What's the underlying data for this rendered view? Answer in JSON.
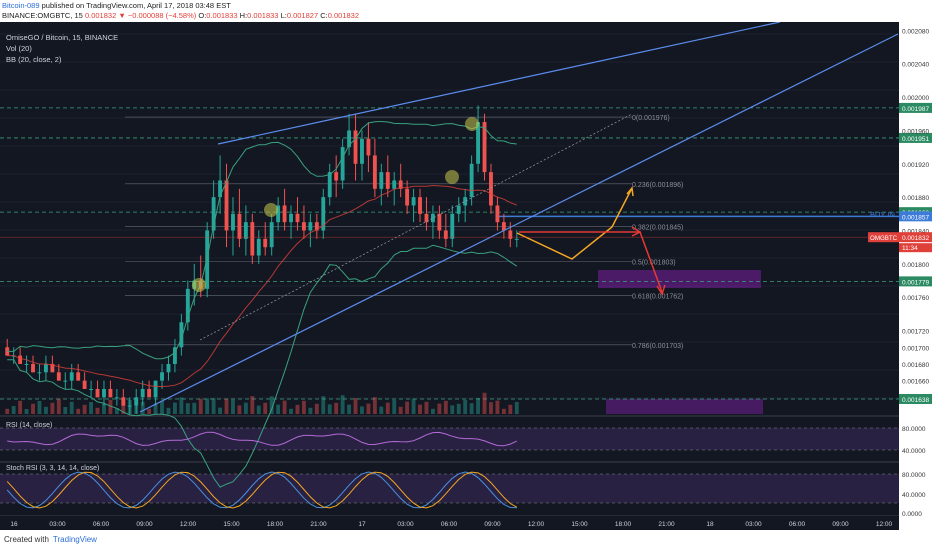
{
  "header": {
    "author": "Bitcoin-089",
    "published": "published on TradingView.com, April 17, 2018 03:48 EST",
    "symbol_line": "BINANCE:OMGBTC, 15",
    "last": "0.001832",
    "arrow": "▼",
    "change": "−0.000088 (−4.58%)",
    "ohlc": {
      "o_label": "O:",
      "o": "0.001833",
      "h_label": "H:",
      "h": "0.001833",
      "l_label": "L:",
      "l": "0.001827",
      "c_label": "C:",
      "c": "0.001832"
    }
  },
  "legend": {
    "title": "OmiseGO / Bitcoin, 15, BINANCE",
    "vol": "Vol (20)",
    "bb": "BB (20, close, 2)",
    "rsi": "RSI (14, close)",
    "stoch": "Stoch RSI (3, 3, 14, 14, close)"
  },
  "annotations": {
    "buy_in": "BUY IN",
    "price_tag": "OMGBTC",
    "price_tag_value": "0.001832",
    "countdown": "11:34"
  },
  "footer": {
    "created": "Created with",
    "brand": "TradingView"
  },
  "colors": {
    "up": "#26a69a",
    "down": "#ef5350",
    "trend": "#5b8def",
    "fib": "#9aa0aa",
    "arrow_up": "#f5a623",
    "arrow_down": "#e53935",
    "zone": "#7b1fa2"
  },
  "chart_data": {
    "type": "candlestick",
    "title": "OmiseGO / Bitcoin, 15, BINANCE",
    "x_ticks": [
      "16",
      "03:00",
      "06:00",
      "09:00",
      "12:00",
      "15:00",
      "18:00",
      "21:00",
      "17",
      "03:00",
      "06:00",
      "09:00",
      "12:00",
      "15:00",
      "18:00",
      "21:00",
      "18",
      "03:00",
      "06:00",
      "09:00",
      "12:00"
    ],
    "y_ticks": [
      "0.002080",
      "0.002040",
      "0.002000",
      "0.001960",
      "0.001920",
      "0.001880",
      "0.001840",
      "0.001800",
      "0.001760",
      "0.001720",
      "0.001700",
      "0.001680",
      "0.001660"
    ],
    "ylim": [
      0.00162,
      0.00209
    ],
    "price_levels": [
      {
        "value": "0.001987",
        "style": "dashed-green"
      },
      {
        "value": "0.001951",
        "style": "dashed-green"
      },
      {
        "value": "0.001862",
        "style": "dashed-green"
      },
      {
        "value": "0.001857",
        "style": "blue"
      },
      {
        "value": "0.001779",
        "style": "dashed-green"
      },
      {
        "value": "0.001638",
        "style": "dashed-green"
      }
    ],
    "fib_levels": [
      {
        "label": "0(0.001976)",
        "value": 0.001976
      },
      {
        "label": "0.236(0.001896)",
        "value": 0.001896
      },
      {
        "label": "0.382(0.001845)",
        "value": 0.001845
      },
      {
        "label": "0.5(0.001803)",
        "value": 0.001803
      },
      {
        "label": "0.618(0.001762)",
        "value": 0.001762
      },
      {
        "label": "0.786(0.001703)",
        "value": 0.001703
      }
    ],
    "rsi_ticks": [
      "80.0000",
      "40.0000"
    ],
    "stoch_ticks": [
      "80.0000",
      "40.0000",
      "0.0000"
    ],
    "candles_ohlc": [
      [
        0.0017,
        0.00171,
        0.00169,
        0.00169
      ],
      [
        0.00169,
        0.0017,
        0.00168,
        0.00169
      ],
      [
        0.00169,
        0.0017,
        0.00168,
        0.00168
      ],
      [
        0.00168,
        0.00169,
        0.00167,
        0.00168
      ],
      [
        0.00168,
        0.00169,
        0.00167,
        0.00167
      ],
      [
        0.00167,
        0.00168,
        0.00166,
        0.00167
      ],
      [
        0.00167,
        0.00169,
        0.00166,
        0.00168
      ],
      [
        0.00168,
        0.00169,
        0.00167,
        0.00167
      ],
      [
        0.00167,
        0.00168,
        0.00166,
        0.00166
      ],
      [
        0.00166,
        0.00167,
        0.00165,
        0.00166
      ],
      [
        0.00166,
        0.00168,
        0.00165,
        0.00167
      ],
      [
        0.00167,
        0.00168,
        0.00166,
        0.00166
      ],
      [
        0.00166,
        0.00167,
        0.00165,
        0.00165
      ],
      [
        0.00165,
        0.00166,
        0.00164,
        0.00165
      ],
      [
        0.00165,
        0.00166,
        0.00164,
        0.00164
      ],
      [
        0.00164,
        0.00166,
        0.00163,
        0.00165
      ],
      [
        0.00165,
        0.00166,
        0.00164,
        0.00164
      ],
      [
        0.00164,
        0.00165,
        0.00163,
        0.00164
      ],
      [
        0.00164,
        0.00165,
        0.00163,
        0.00163
      ],
      [
        0.00163,
        0.00164,
        0.00162,
        0.00163
      ],
      [
        0.00163,
        0.00165,
        0.00162,
        0.00164
      ],
      [
        0.00164,
        0.00166,
        0.00163,
        0.00165
      ],
      [
        0.00165,
        0.00166,
        0.00164,
        0.00164
      ],
      [
        0.00164,
        0.00166,
        0.00163,
        0.00166
      ],
      [
        0.00166,
        0.00168,
        0.00165,
        0.00167
      ],
      [
        0.00167,
        0.00169,
        0.00166,
        0.00168
      ],
      [
        0.00168,
        0.00171,
        0.00167,
        0.0017
      ],
      [
        0.0017,
        0.00174,
        0.00169,
        0.00173
      ],
      [
        0.00173,
        0.00178,
        0.00172,
        0.00177
      ],
      [
        0.00177,
        0.0018,
        0.00175,
        0.00178
      ],
      [
        0.00178,
        0.00181,
        0.00176,
        0.00177
      ],
      [
        0.00177,
        0.00185,
        0.00176,
        0.00184
      ],
      [
        0.00184,
        0.0019,
        0.00183,
        0.00188
      ],
      [
        0.00188,
        0.00193,
        0.00186,
        0.0019
      ],
      [
        0.0019,
        0.00192,
        0.00182,
        0.00184
      ],
      [
        0.00184,
        0.00188,
        0.00181,
        0.00186
      ],
      [
        0.00186,
        0.00189,
        0.00182,
        0.00183
      ],
      [
        0.00183,
        0.00187,
        0.00181,
        0.00185
      ],
      [
        0.00185,
        0.00186,
        0.0018,
        0.00181
      ],
      [
        0.00181,
        0.00184,
        0.0018,
        0.00183
      ],
      [
        0.00183,
        0.00185,
        0.00181,
        0.00182
      ],
      [
        0.00182,
        0.00186,
        0.00181,
        0.00185
      ],
      [
        0.00185,
        0.00188,
        0.00184,
        0.00187
      ],
      [
        0.00187,
        0.00189,
        0.00184,
        0.00185
      ],
      [
        0.00185,
        0.00187,
        0.00183,
        0.00186
      ],
      [
        0.00186,
        0.00188,
        0.00184,
        0.00185
      ],
      [
        0.00185,
        0.00187,
        0.00183,
        0.00184
      ],
      [
        0.00184,
        0.00186,
        0.00182,
        0.00185
      ],
      [
        0.00185,
        0.00186,
        0.00183,
        0.00184
      ],
      [
        0.00184,
        0.00189,
        0.00183,
        0.00188
      ],
      [
        0.00188,
        0.00192,
        0.00187,
        0.00191
      ],
      [
        0.00191,
        0.00193,
        0.00188,
        0.0019
      ],
      [
        0.0019,
        0.00195,
        0.00189,
        0.00194
      ],
      [
        0.00194,
        0.00198,
        0.00193,
        0.00196
      ],
      [
        0.00196,
        0.00198,
        0.0019,
        0.00192
      ],
      [
        0.00192,
        0.00196,
        0.0019,
        0.00195
      ],
      [
        0.00195,
        0.00197,
        0.00191,
        0.00193
      ],
      [
        0.00193,
        0.00195,
        0.00188,
        0.00189
      ],
      [
        0.00189,
        0.00192,
        0.00187,
        0.00191
      ],
      [
        0.00191,
        0.00193,
        0.00188,
        0.00189
      ],
      [
        0.00189,
        0.00191,
        0.00187,
        0.0019
      ],
      [
        0.0019,
        0.00192,
        0.00188,
        0.00189
      ],
      [
        0.00189,
        0.0019,
        0.00186,
        0.00187
      ],
      [
        0.00187,
        0.00189,
        0.00185,
        0.00188
      ],
      [
        0.00188,
        0.00189,
        0.00185,
        0.00186
      ],
      [
        0.00186,
        0.00188,
        0.00184,
        0.00185
      ],
      [
        0.00185,
        0.00187,
        0.00183,
        0.00186
      ],
      [
        0.00186,
        0.00187,
        0.00183,
        0.00184
      ],
      [
        0.00184,
        0.00186,
        0.00182,
        0.00183
      ],
      [
        0.00183,
        0.00187,
        0.00182,
        0.00186
      ],
      [
        0.00186,
        0.00188,
        0.00185,
        0.00187
      ],
      [
        0.00187,
        0.00189,
        0.00185,
        0.00188
      ],
      [
        0.00188,
        0.00193,
        0.00187,
        0.00192
      ],
      [
        0.00192,
        0.00199,
        0.00191,
        0.00197
      ],
      [
        0.00197,
        0.00198,
        0.0019,
        0.00191
      ],
      [
        0.00191,
        0.00192,
        0.00186,
        0.00187
      ],
      [
        0.00187,
        0.00188,
        0.00184,
        0.00185
      ],
      [
        0.00185,
        0.00186,
        0.00183,
        0.00184
      ],
      [
        0.00184,
        0.00185,
        0.00182,
        0.00183
      ],
      [
        0.00183,
        0.00184,
        0.00182,
        0.00183
      ]
    ]
  }
}
